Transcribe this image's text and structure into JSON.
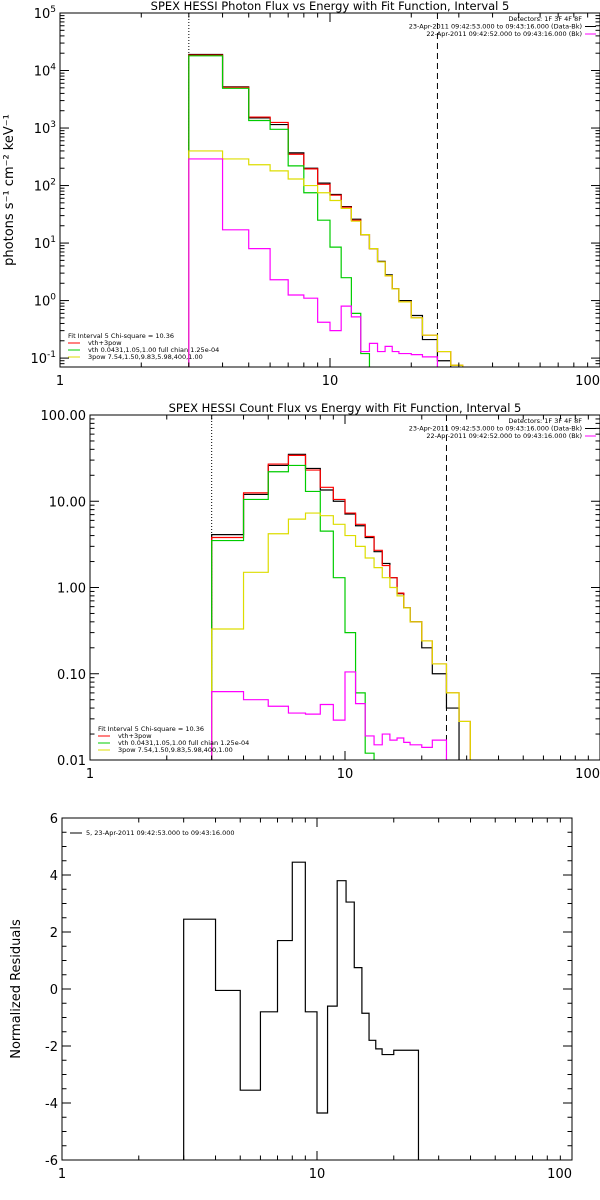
{
  "chart_data": [
    {
      "type": "line",
      "title": "SPEX HESSI Photon Flux vs Energy with Fit Function, Interval 5",
      "xlabel": "",
      "ylabel": "photons s⁻¹ cm⁻² keV⁻¹",
      "xscale": "log",
      "yscale": "log",
      "xlim": [
        1,
        100
      ],
      "ylim": [
        0.07,
        100000
      ],
      "xticks": [
        "1",
        "10",
        "100"
      ],
      "yticks": [
        {
          "v": 0.1,
          "m": "10",
          "e": "-1"
        },
        {
          "v": 1,
          "m": "10",
          "e": "0"
        },
        {
          "v": 10,
          "m": "10",
          "e": "1"
        },
        {
          "v": 100,
          "m": "10",
          "e": "2"
        },
        {
          "v": 1000,
          "m": "10",
          "e": "3"
        },
        {
          "v": 10000,
          "m": "10",
          "e": "4"
        },
        {
          "v": 100000,
          "m": "10",
          "e": "5"
        }
      ],
      "vlines": [
        {
          "x": 3.0,
          "style": "dotted"
        },
        {
          "x": 25.0,
          "style": "dashed"
        }
      ],
      "legend_top_right": [
        {
          "text": "Detectors: 1F 3F 4F 8F",
          "color": "#000000"
        },
        {
          "text": "23-Apr-2011 09:42:53.000 to 09:43:16.000 (Data-Bk)",
          "color": "#000000"
        },
        {
          "text": "22-Apr-2011 09:42:52.000 to 09:43:16.000 (Bk)",
          "color": "#ff00ff"
        }
      ],
      "legend_bottom_left": [
        {
          "text": "Fit Interval 5    Chi-square = 10.36",
          "color": null
        },
        {
          "text": "vth+3pow",
          "color": "#ff0000"
        },
        {
          "text": "vth 0.0431,1.05,1.00  full chian 1.25e-04",
          "color": "#00cc00"
        },
        {
          "text": "3pow 7.54,1.50,9.83,5.98,400,1.00",
          "color": "#dddd00"
        }
      ],
      "edges": [
        3,
        4,
        5,
        6,
        7,
        8,
        9,
        10,
        11,
        12,
        13,
        14,
        15,
        16,
        17,
        18,
        20,
        22,
        25,
        28,
        31
      ],
      "series": [
        {
          "name": "Data-Bk",
          "color": "#000000",
          "values": [
            19000,
            5200,
            1500,
            1150,
            370,
            200,
            110,
            70,
            43,
            26,
            14,
            8,
            4.8,
            2.8,
            1.6,
            1.0,
            0.55,
            0.21,
            0.09,
            null
          ]
        },
        {
          "name": "vth+3pow",
          "color": "#ff0000",
          "values": [
            18500,
            5100,
            1550,
            1250,
            350,
            195,
            105,
            68,
            42,
            25,
            14,
            8,
            4.7,
            2.7,
            1.6,
            0.95,
            0.5,
            0.25,
            0.13,
            0.075
          ]
        },
        {
          "name": "vth",
          "color": "#00cc00",
          "values": [
            18000,
            4900,
            1350,
            950,
            220,
            75,
            25,
            8.5,
            2.5,
            0.6,
            0.12,
            null,
            null,
            null,
            null,
            null,
            null,
            null,
            null,
            null
          ]
        },
        {
          "name": "3pow",
          "color": "#dddd00",
          "values": [
            400,
            290,
            230,
            180,
            130,
            100,
            75,
            55,
            40,
            24,
            14,
            8,
            4.7,
            2.7,
            1.6,
            0.95,
            0.5,
            0.25,
            0.13,
            0.075
          ]
        },
        {
          "name": "Bk",
          "color": "#ff00ff",
          "values": [
            290,
            17,
            8,
            2.3,
            1.25,
            1.1,
            0.42,
            0.3,
            0.8,
            0.52,
            0.13,
            0.18,
            0.13,
            0.16,
            0.13,
            0.12,
            0.115,
            0.105,
            null,
            null
          ]
        }
      ]
    },
    {
      "type": "line",
      "title": "SPEX HESSI Count Flux vs Energy with Fit Function, Interval 5",
      "xlabel": "",
      "ylabel": "",
      "xscale": "log",
      "yscale": "log",
      "xlim": [
        1,
        100
      ],
      "ylim": [
        0.01,
        100
      ],
      "xticks": [
        "1",
        "10",
        "100"
      ],
      "yticks": [
        {
          "v": 0.01,
          "t": "0.01"
        },
        {
          "v": 0.1,
          "t": "0.10"
        },
        {
          "v": 1,
          "t": "1.00"
        },
        {
          "v": 10,
          "t": "10.00"
        },
        {
          "v": 100,
          "t": "100.00"
        }
      ],
      "vlines": [
        {
          "x": 3.0,
          "style": "dotted"
        },
        {
          "x": 25.0,
          "style": "dashed"
        }
      ],
      "legend_top_right": [
        {
          "text": "Detectors: 1F 3F 4F 8F",
          "color": "#000000"
        },
        {
          "text": "23-Apr-2011 09:42:53.000 to 09:43:16.000 (Data-Bk)",
          "color": "#000000"
        },
        {
          "text": "22-Apr-2011 09:42:52.000 to 09:43:16.000 (Bk)",
          "color": "#ff00ff"
        }
      ],
      "legend_bottom_left": [
        {
          "text": "Fit Interval 5    Chi-square = 10.36",
          "color": null
        },
        {
          "text": "vth+3pow",
          "color": "#ff0000"
        },
        {
          "text": "vth 0.0431,1.05,1.00  full chian 1.25e-04",
          "color": "#00cc00"
        },
        {
          "text": "3pow 7.54,1.50,9.83,5.98,400,1.00",
          "color": "#dddd00"
        }
      ],
      "edges": [
        3,
        4,
        5,
        6,
        7,
        8,
        9,
        10,
        11,
        12,
        13,
        14,
        15,
        16,
        17,
        18,
        20,
        22,
        25,
        28,
        31
      ],
      "series": [
        {
          "name": "Data-Bk",
          "color": "#000000",
          "values": [
            4.1,
            12,
            26,
            35,
            24,
            13.5,
            10,
            7.1,
            5.2,
            3.8,
            2.6,
            1.9,
            1.3,
            0.85,
            0.58,
            0.4,
            0.2,
            0.1,
            0.04,
            null
          ]
        },
        {
          "name": "vth+3pow",
          "color": "#ff0000",
          "values": [
            3.8,
            12.5,
            27,
            34,
            23,
            14.5,
            10.5,
            7.3,
            5.4,
            3.9,
            2.7,
            1.8,
            1.3,
            0.86,
            0.58,
            0.4,
            0.24,
            0.13,
            0.06,
            0.028
          ]
        },
        {
          "name": "vth",
          "color": "#00cc00",
          "values": [
            3.5,
            10.5,
            22,
            26,
            13,
            4.5,
            1.3,
            0.3,
            0.06,
            0.012,
            0.003,
            null,
            null,
            null,
            null,
            null,
            null,
            null,
            null,
            null
          ]
        },
        {
          "name": "3pow",
          "color": "#dddd00",
          "values": [
            0.33,
            1.5,
            4.2,
            6.2,
            7.3,
            6.8,
            5.4,
            4.0,
            3.0,
            2.2,
            1.7,
            1.3,
            1.0,
            0.8,
            0.58,
            0.4,
            0.24,
            0.13,
            0.06,
            0.028
          ]
        },
        {
          "name": "Bk",
          "color": "#ff00ff",
          "values": [
            0.062,
            0.05,
            0.042,
            0.035,
            0.034,
            0.044,
            0.029,
            0.105,
            0.045,
            0.019,
            0.015,
            0.02,
            0.017,
            0.018,
            0.016,
            0.015,
            0.014,
            0.017,
            null,
            null
          ]
        }
      ]
    },
    {
      "type": "line",
      "title": "",
      "xlabel": "",
      "ylabel": "Normalized Residuals",
      "xscale": "log",
      "yscale": "linear",
      "xlim": [
        1,
        100
      ],
      "ylim": [
        -6,
        6
      ],
      "xticks": [
        "1",
        "10",
        "100"
      ],
      "yticks": [
        {
          "v": -6,
          "t": "-6"
        },
        {
          "v": -4,
          "t": "-4"
        },
        {
          "v": -2,
          "t": "-2"
        },
        {
          "v": 0,
          "t": "0"
        },
        {
          "v": 2,
          "t": "2"
        },
        {
          "v": 4,
          "t": "4"
        },
        {
          "v": 6,
          "t": "6"
        }
      ],
      "legend": [
        {
          "text": "5, 23-Apr-2011 09:42:53.000 to 09:43:16.000",
          "color": "#000000"
        }
      ],
      "edges": [
        3,
        4,
        5,
        6,
        7,
        8,
        9,
        10,
        11,
        12,
        13,
        14,
        15,
        16,
        17,
        18,
        20,
        22,
        25
      ],
      "series": [
        {
          "name": "residuals",
          "color": "#000000",
          "values": [
            2.45,
            -0.05,
            -3.55,
            -0.8,
            1.7,
            4.45,
            -0.8,
            -4.35,
            -0.6,
            3.8,
            3.05,
            0.75,
            -0.85,
            -1.8,
            -2.1,
            -2.3,
            -2.15,
            -2.15
          ]
        }
      ]
    }
  ]
}
